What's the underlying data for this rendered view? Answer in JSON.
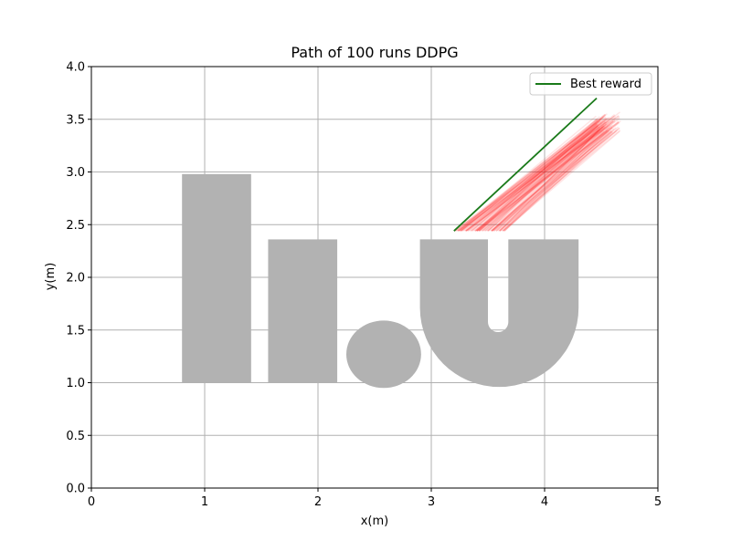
{
  "chart_data": {
    "type": "line",
    "title": "Path of 100 runs DDPG",
    "xlabel": "x(m)",
    "ylabel": "y(m)",
    "xlim": [
      0,
      5
    ],
    "ylim": [
      0,
      4
    ],
    "xticks": [
      0,
      1,
      2,
      3,
      4,
      5
    ],
    "xtick_labels": [
      "0",
      "1",
      "2",
      "3",
      "4",
      "5"
    ],
    "yticks": [
      0,
      0.5,
      1,
      1.5,
      2,
      2.5,
      3,
      3.5,
      4
    ],
    "ytick_labels": [
      "0.0",
      "0.5",
      "1.0",
      "1.5",
      "2.0",
      "2.5",
      "3.0",
      "3.5",
      "4.0"
    ],
    "grid": true,
    "legend": {
      "placement": "top-right",
      "entries": [
        "Best reward"
      ]
    },
    "colors": {
      "best": "#1a7a1a",
      "runs": "#ff0000",
      "obstacle": "#b2b2b2",
      "grid": "#b0b0b0"
    },
    "obstacles": [
      {
        "shape": "rect",
        "x0": 0.8,
        "x1": 1.41,
        "y0": 1.0,
        "y1": 2.98
      },
      {
        "shape": "rect",
        "x0": 1.56,
        "x1": 2.17,
        "y0": 1.0,
        "y1": 2.36
      },
      {
        "shape": "ellipse",
        "cx": 2.58,
        "cy": 1.27,
        "rx": 0.33,
        "ry": 0.32
      },
      {
        "shape": "u",
        "x0": 2.9,
        "x1": 4.3,
        "y_top": 2.36,
        "y_bottom": 0.96,
        "inner_x0": 3.5,
        "inner_x1": 3.68,
        "inner_bottom": 1.48
      }
    ],
    "series": [
      {
        "name": "Best reward",
        "x": [
          3.2,
          4.46
        ],
        "y": [
          2.44,
          3.7
        ]
      }
    ],
    "runs": {
      "count": 100,
      "start_x": [
        3.2,
        3.65
      ],
      "start_y": 2.44,
      "end_x": [
        4.45,
        4.68
      ],
      "end_y": [
        3.38,
        3.58
      ]
    }
  }
}
